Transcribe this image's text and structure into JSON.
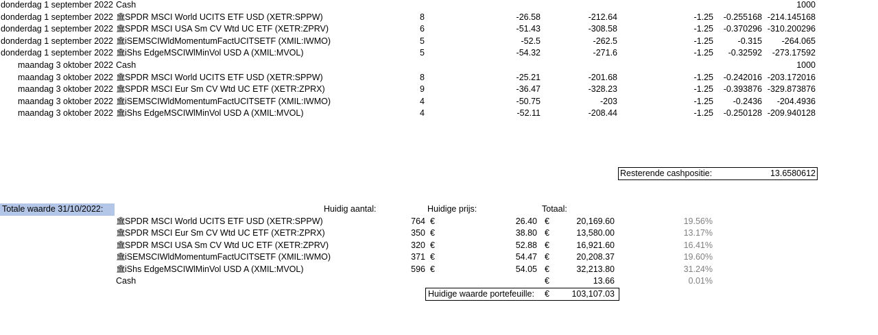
{
  "transactions": [
    {
      "date": "donderdag 1 september 2022",
      "icon": "",
      "name": "Cash",
      "qty": "",
      "price": "",
      "value": "",
      "fee": "",
      "tax": "",
      "total": "1000"
    },
    {
      "date": "donderdag 1 september 2022",
      "icon": "🏛",
      "name": "SPDR MSCI World UCITS ETF USD (XETR:SPPW)",
      "qty": "8",
      "price": "-26.58",
      "value": "-212.64",
      "fee": "-1.25",
      "tax": "-0.255168",
      "total": "-214.145168"
    },
    {
      "date": "donderdag 1 september 2022",
      "icon": "🏛",
      "name": "SPDR MSCI USA Sm CV Wtd UC ETF (XETR:ZPRV)",
      "qty": "6",
      "price": "-51.43",
      "value": "-308.58",
      "fee": "-1.25",
      "tax": "-0.370296",
      "total": "-310.200296"
    },
    {
      "date": "donderdag 1 september 2022",
      "icon": "🏛",
      "name": "iSEMSCIWldMomentumFactUCITSETF (XMIL:IWMO)",
      "qty": "5",
      "price": "-52.5",
      "value": "-262.5",
      "fee": "-1.25",
      "tax": "-0.315",
      "total": "-264.065"
    },
    {
      "date": "donderdag 1 september 2022",
      "icon": "🏛",
      "name": "iShs EdgeMSCIWlMinVol USD A (XMIL:MVOL)",
      "qty": "5",
      "price": "-54.32",
      "value": "-271.6",
      "fee": "-1.25",
      "tax": "-0.32592",
      "total": "-273.17592"
    },
    {
      "date": "maandag 3 oktober 2022",
      "icon": "",
      "name": "Cash",
      "qty": "",
      "price": "",
      "value": "",
      "fee": "",
      "tax": "",
      "total": "1000"
    },
    {
      "date": "maandag 3 oktober 2022",
      "icon": "🏛",
      "name": "SPDR MSCI World UCITS ETF USD (XETR:SPPW)",
      "qty": "8",
      "price": "-25.21",
      "value": "-201.68",
      "fee": "-1.25",
      "tax": "-0.242016",
      "total": "-203.172016"
    },
    {
      "date": "maandag 3 oktober 2022",
      "icon": "🏛",
      "name": "SPDR MSCI Eur Sm CV Wtd UC ETF (XETR:ZPRX)",
      "qty": "9",
      "price": "-36.47",
      "value": "-328.23",
      "fee": "-1.25",
      "tax": "-0.393876",
      "total": "-329.873876"
    },
    {
      "date": "maandag 3 oktober 2022",
      "icon": "🏛",
      "name": "iSEMSCIWldMomentumFactUCITSETF (XMIL:IWMO)",
      "qty": "4",
      "price": "-50.75",
      "value": "-203",
      "fee": "-1.25",
      "tax": "-0.2436",
      "total": "-204.4936"
    },
    {
      "date": "maandag 3 oktober 2022",
      "icon": "🏛",
      "name": "iShs EdgeMSCIWlMinVol USD A (XMIL:MVOL)",
      "qty": "4",
      "price": "-52.11",
      "value": "-208.44",
      "fee": "-1.25",
      "tax": "-0.250128",
      "total": "-209.940128"
    }
  ],
  "cash_remaining": {
    "label": "Resterende cashpositie:",
    "value": "13.6580612"
  },
  "summary": {
    "title": "Totale waarde 31/10/2022:",
    "headers": {
      "qty": "Huidig aantal:",
      "price": "Huidige prijs:",
      "total": "Totaal:"
    },
    "rows": [
      {
        "icon": "🏛",
        "name": "SPDR MSCI World UCITS ETF USD (XETR:SPPW)",
        "qty": "764",
        "cur1": "€",
        "price": "26.40",
        "cur2": "€",
        "total": "20,169.60",
        "pct": "19.56%"
      },
      {
        "icon": "🏛",
        "name": "SPDR MSCI Eur Sm CV Wtd UC ETF (XETR:ZPRX)",
        "qty": "350",
        "cur1": "€",
        "price": "38.80",
        "cur2": "€",
        "total": "13,580.00",
        "pct": "13.17%"
      },
      {
        "icon": "🏛",
        "name": "SPDR MSCI USA Sm CV Wtd UC ETF (XETR:ZPRV)",
        "qty": "320",
        "cur1": "€",
        "price": "52.88",
        "cur2": "€",
        "total": "16,921.60",
        "pct": "16.41%"
      },
      {
        "icon": "🏛",
        "name": "iSEMSCIWldMomentumFactUCITSETF (XMIL:IWMO)",
        "qty": "371",
        "cur1": "€",
        "price": "54.47",
        "cur2": "€",
        "total": "20,208.37",
        "pct": "19.60%"
      },
      {
        "icon": "🏛",
        "name": "iShs EdgeMSCIWlMinVol USD A (XMIL:MVOL)",
        "qty": "596",
        "cur1": "€",
        "price": "54.05",
        "cur2": "€",
        "total": "32,213.80",
        "pct": "31.24%"
      },
      {
        "icon": "",
        "name": "Cash",
        "qty": "",
        "cur1": "",
        "price": "",
        "cur2": "€",
        "total": "13.66",
        "pct": "0.01%"
      }
    ],
    "portfolio": {
      "label": "Huidige waarde portefeuille:",
      "currency": "€",
      "value": "103,107.03"
    }
  }
}
